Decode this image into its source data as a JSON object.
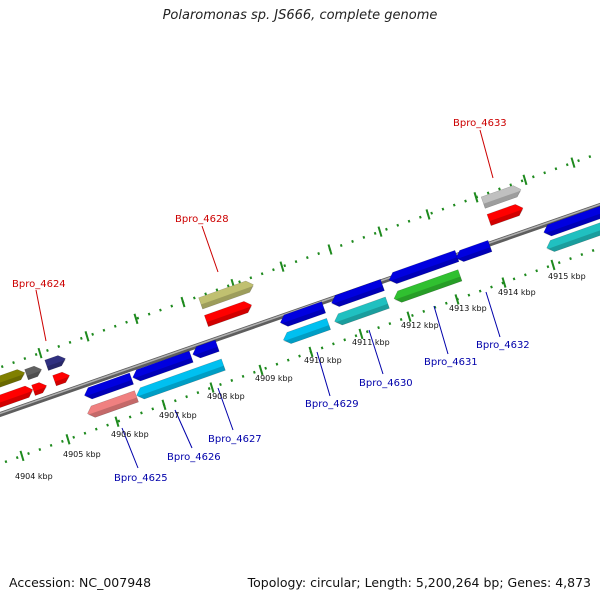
{
  "title": "Polaromonas sp. JS666, complete genome",
  "footer": {
    "accession": "Accession: NC_007948",
    "summary": "Topology: circular; Length: 5,200,264 bp; Genes: 4,873"
  },
  "colors": {
    "backbone": "#8a8a8a",
    "tick_dots": "#1e8a1e",
    "label_red": "#cc0000",
    "label_blue": "#0000aa"
  },
  "scale_labels": [
    "4904 kbp",
    "4905 kbp",
    "4906 kbp",
    "4907 kbp",
    "4908 kbp",
    "4909 kbp",
    "4910 kbp",
    "4911 kbp",
    "4912 kbp",
    "4913 kbp",
    "4914 kbp",
    "4915 kbp"
  ],
  "gene_labels": [
    {
      "text": "Bpro_4624",
      "strand": "forward"
    },
    {
      "text": "Bpro_4628",
      "strand": "forward"
    },
    {
      "text": "Bpro_4633",
      "strand": "forward"
    },
    {
      "text": "Bpro_4625",
      "strand": "reverse"
    },
    {
      "text": "Bpro_4626",
      "strand": "reverse"
    },
    {
      "text": "Bpro_4627",
      "strand": "reverse"
    },
    {
      "text": "Bpro_4629",
      "strand": "reverse"
    },
    {
      "text": "Bpro_4630",
      "strand": "reverse"
    },
    {
      "text": "Bpro_4631",
      "strand": "reverse"
    },
    {
      "text": "Bpro_4632",
      "strand": "reverse"
    }
  ],
  "feature_colors": [
    "#808000",
    "#606060",
    "#303080",
    "#ff0000",
    "#c0c070",
    "#c0c0c0",
    "#0000e0",
    "#f08080",
    "#00c0f0",
    "#20c0c0",
    "#30c030"
  ]
}
